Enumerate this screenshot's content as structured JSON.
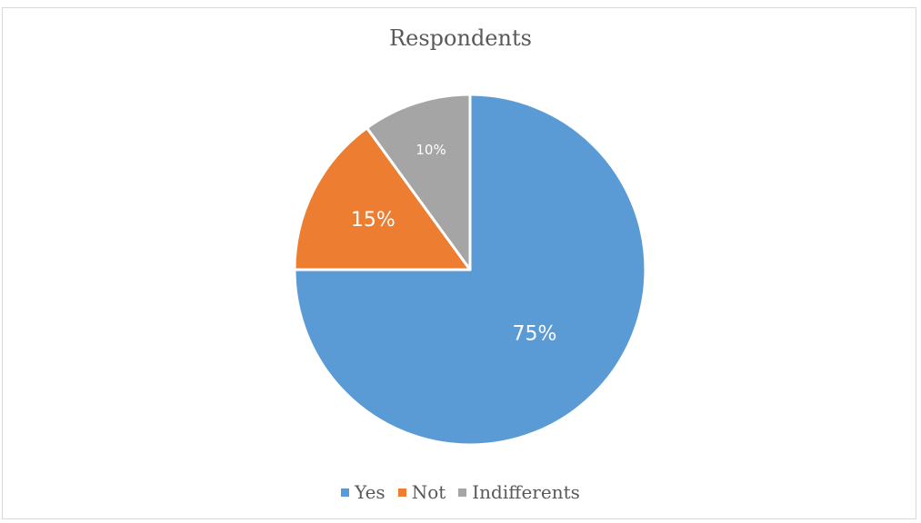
{
  "chart_data": {
    "type": "pie",
    "title": "Respondents",
    "categories": [
      "Yes",
      "Not",
      "Indifferents"
    ],
    "values": [
      75,
      15,
      10
    ],
    "data_labels": [
      "75%",
      "15%",
      "10%"
    ],
    "colors": [
      "#5b9bd5",
      "#ed7d31",
      "#a5a5a5"
    ],
    "start_angle_deg": 0,
    "direction": "clockwise",
    "legend_position": "bottom"
  }
}
